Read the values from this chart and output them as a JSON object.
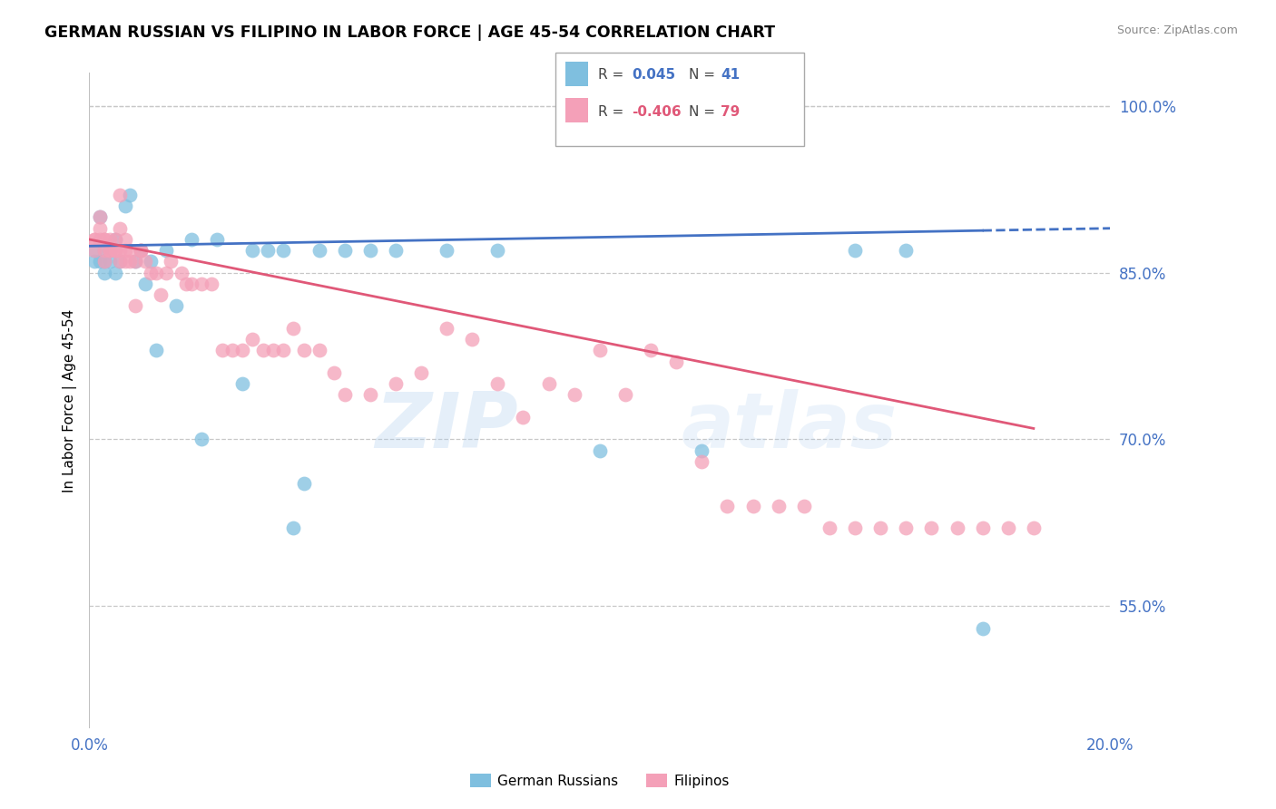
{
  "title": "GERMAN RUSSIAN VS FILIPINO IN LABOR FORCE | AGE 45-54 CORRELATION CHART",
  "source": "Source: ZipAtlas.com",
  "ylabel_label": "In Labor Force | Age 45-54",
  "legend_label1": "German Russians",
  "legend_label2": "Filipinos",
  "watermark": "ZIPatlas",
  "color_blue": "#7fbfdf",
  "color_pink": "#f4a0b8",
  "color_blue_line": "#4472c4",
  "color_pink_line": "#e05878",
  "color_axis_labels": "#4472c4",
  "xlim": [
    0.0,
    0.2
  ],
  "ylim": [
    0.44,
    1.03
  ],
  "yticks": [
    0.55,
    0.7,
    0.85,
    1.0
  ],
  "ytick_labels": [
    "55.0%",
    "70.0%",
    "85.0%",
    "100.0%"
  ],
  "xticks": [
    0.0,
    0.05,
    0.1,
    0.15,
    0.2
  ],
  "xtick_labels": [
    "0.0%",
    "",
    "",
    "",
    "20.0%"
  ],
  "blue_R": 0.045,
  "blue_N": 41,
  "pink_R": -0.406,
  "pink_N": 79,
  "blue_x": [
    0.001,
    0.001,
    0.002,
    0.002,
    0.003,
    0.003,
    0.003,
    0.004,
    0.004,
    0.005,
    0.005,
    0.006,
    0.007,
    0.008,
    0.009,
    0.01,
    0.011,
    0.012,
    0.013,
    0.015,
    0.017,
    0.02,
    0.022,
    0.025,
    0.03,
    0.032,
    0.035,
    0.038,
    0.04,
    0.042,
    0.045,
    0.05,
    0.055,
    0.06,
    0.07,
    0.08,
    0.1,
    0.12,
    0.15,
    0.16,
    0.175
  ],
  "blue_y": [
    0.87,
    0.86,
    0.9,
    0.86,
    0.87,
    0.86,
    0.85,
    0.87,
    0.86,
    0.88,
    0.85,
    0.86,
    0.91,
    0.92,
    0.86,
    0.87,
    0.84,
    0.86,
    0.78,
    0.87,
    0.82,
    0.88,
    0.7,
    0.88,
    0.75,
    0.87,
    0.87,
    0.87,
    0.62,
    0.66,
    0.87,
    0.87,
    0.87,
    0.87,
    0.87,
    0.87,
    0.69,
    0.69,
    0.87,
    0.87,
    0.53
  ],
  "pink_x": [
    0.001,
    0.001,
    0.001,
    0.002,
    0.002,
    0.002,
    0.003,
    0.003,
    0.003,
    0.003,
    0.004,
    0.004,
    0.004,
    0.005,
    0.005,
    0.005,
    0.006,
    0.006,
    0.006,
    0.006,
    0.007,
    0.007,
    0.007,
    0.008,
    0.008,
    0.009,
    0.009,
    0.01,
    0.01,
    0.011,
    0.012,
    0.013,
    0.014,
    0.015,
    0.016,
    0.018,
    0.019,
    0.02,
    0.022,
    0.024,
    0.026,
    0.028,
    0.03,
    0.032,
    0.034,
    0.036,
    0.038,
    0.04,
    0.042,
    0.045,
    0.048,
    0.05,
    0.055,
    0.06,
    0.065,
    0.07,
    0.075,
    0.08,
    0.085,
    0.09,
    0.095,
    0.1,
    0.105,
    0.11,
    0.115,
    0.12,
    0.125,
    0.13,
    0.135,
    0.14,
    0.145,
    0.15,
    0.155,
    0.16,
    0.165,
    0.17,
    0.175,
    0.18,
    0.185
  ],
  "pink_y": [
    0.88,
    0.87,
    0.88,
    0.89,
    0.88,
    0.9,
    0.88,
    0.88,
    0.87,
    0.86,
    0.88,
    0.87,
    0.87,
    0.88,
    0.87,
    0.87,
    0.92,
    0.89,
    0.87,
    0.86,
    0.88,
    0.87,
    0.86,
    0.87,
    0.86,
    0.86,
    0.82,
    0.87,
    0.87,
    0.86,
    0.85,
    0.85,
    0.83,
    0.85,
    0.86,
    0.85,
    0.84,
    0.84,
    0.84,
    0.84,
    0.78,
    0.78,
    0.78,
    0.79,
    0.78,
    0.78,
    0.78,
    0.8,
    0.78,
    0.78,
    0.76,
    0.74,
    0.74,
    0.75,
    0.76,
    0.8,
    0.79,
    0.75,
    0.72,
    0.75,
    0.74,
    0.78,
    0.74,
    0.78,
    0.77,
    0.68,
    0.64,
    0.64,
    0.64,
    0.64,
    0.62,
    0.62,
    0.62,
    0.62,
    0.62,
    0.62,
    0.62,
    0.62,
    0.62
  ]
}
